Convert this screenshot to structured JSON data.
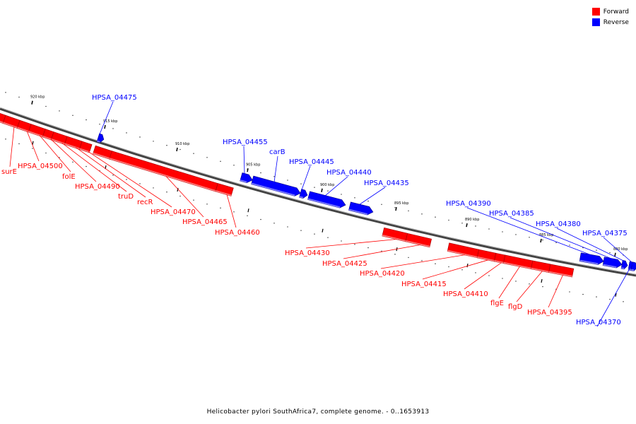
{
  "legend": {
    "forward_label": "Forward",
    "reverse_label": "Reverse",
    "forward_color": "#ff0000",
    "reverse_color": "#0000ff"
  },
  "caption": "Helicobacter pylori SouthAfrica7, complete genome. - 0..1653913",
  "ticks": [
    "920 kbp",
    "915 kbp",
    "910 kbp",
    "905 kbp",
    "900 kbp",
    "895 kbp",
    "890 kbp",
    "885 kbp",
    "880 kbp"
  ],
  "genes": [
    {
      "name": "HPSA_04500",
      "strand": "forward"
    },
    {
      "name": "surE",
      "strand": "forward"
    },
    {
      "name": "folE",
      "strand": "forward"
    },
    {
      "name": "HPSA_04490",
      "strand": "forward"
    },
    {
      "name": "truD",
      "strand": "forward"
    },
    {
      "name": "recR",
      "strand": "forward"
    },
    {
      "name": "HPSA_04470",
      "strand": "forward"
    },
    {
      "name": "HPSA_04465",
      "strand": "forward"
    },
    {
      "name": "HPSA_04460",
      "strand": "forward"
    },
    {
      "name": "HPSA_04475",
      "strand": "reverse"
    },
    {
      "name": "HPSA_04455",
      "strand": "reverse"
    },
    {
      "name": "carB",
      "strand": "reverse"
    },
    {
      "name": "HPSA_04445",
      "strand": "reverse"
    },
    {
      "name": "HPSA_04440",
      "strand": "reverse"
    },
    {
      "name": "HPSA_04435",
      "strand": "reverse"
    },
    {
      "name": "HPSA_04430",
      "strand": "forward"
    },
    {
      "name": "HPSA_04425",
      "strand": "forward"
    },
    {
      "name": "HPSA_04420",
      "strand": "forward"
    },
    {
      "name": "HPSA_04415",
      "strand": "forward"
    },
    {
      "name": "HPSA_04410",
      "strand": "forward"
    },
    {
      "name": "flgE",
      "strand": "forward"
    },
    {
      "name": "flgD",
      "strand": "forward"
    },
    {
      "name": "HPSA_04395",
      "strand": "forward"
    },
    {
      "name": "HPSA_04390",
      "strand": "reverse"
    },
    {
      "name": "HPSA_04385",
      "strand": "reverse"
    },
    {
      "name": "HPSA_04380",
      "strand": "reverse"
    },
    {
      "name": "HPSA_04375",
      "strand": "reverse"
    },
    {
      "name": "HPSA_04370",
      "strand": "reverse"
    }
  ]
}
